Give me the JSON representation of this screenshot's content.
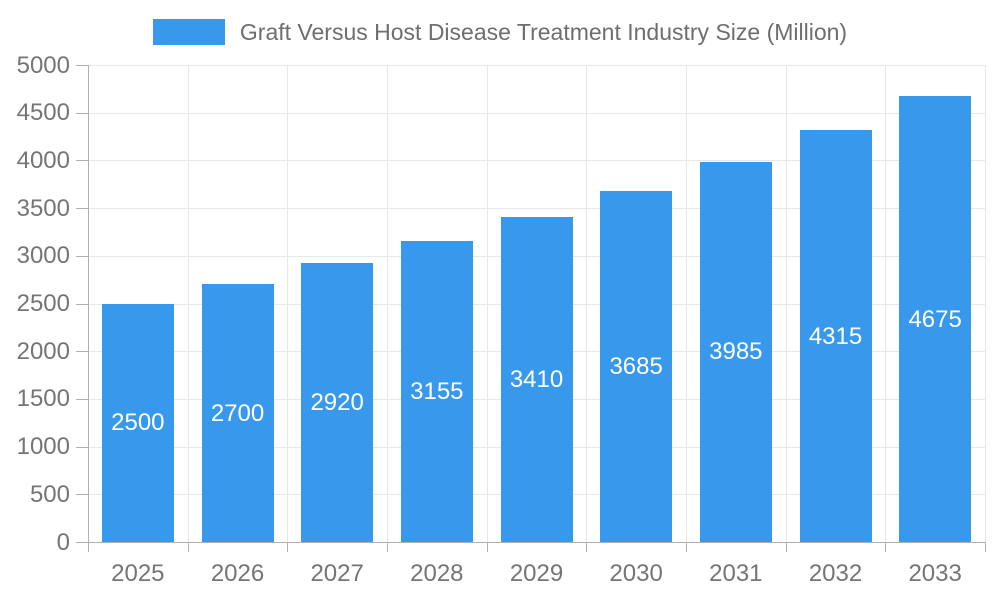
{
  "colors": {
    "bar": "#3899EC",
    "grid_line": "#e8e8e8",
    "axis_line": "#b0b0b0",
    "axis_label_text": "#757575",
    "legend_text": "#6e6e6e",
    "bar_label_text": "#ffffff",
    "background": "#ffffff"
  },
  "legend": {
    "label": "Graft Versus Host Disease Treatment Industry Size (Million)",
    "swatch_color": "#3899EC",
    "position": "top"
  },
  "chart_data": {
    "type": "bar",
    "title": "Graft Versus Host Disease Treatment Industry Size (Million)",
    "series_name": "Graft Versus Host Disease Treatment Industry Size (Million)",
    "categories": [
      "2025",
      "2026",
      "2027",
      "2028",
      "2029",
      "2030",
      "2031",
      "2032",
      "2033"
    ],
    "values": [
      2500,
      2700,
      2920,
      3155,
      3410,
      3685,
      3985,
      4315,
      4675
    ],
    "xlabel": "",
    "ylabel": "",
    "ylim": [
      0,
      5000
    ],
    "y_tick_step": 500,
    "y_ticks": [
      0,
      500,
      1000,
      1500,
      2000,
      2500,
      3000,
      3500,
      4000,
      4500,
      5000
    ],
    "grid": true,
    "legend_position": "top",
    "bar_labels": "inside-center"
  }
}
